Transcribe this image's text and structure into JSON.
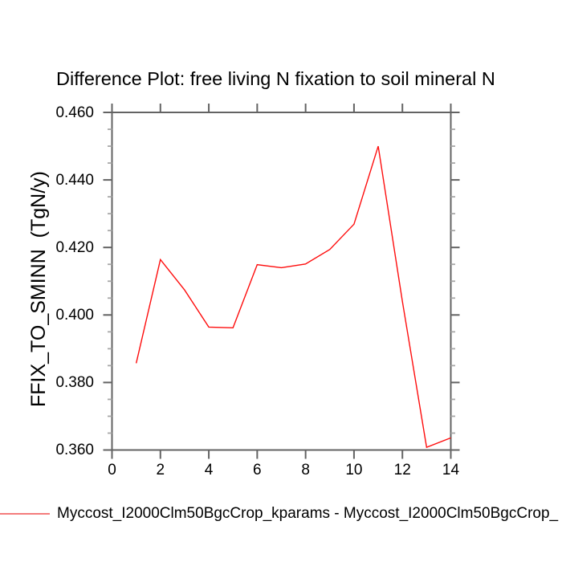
{
  "title": "Difference Plot: free living N fixation to soil mineral N",
  "y_axis_label": "FFIX_TO_SMINN  (TgN/y)",
  "legend": {
    "label": "Myccost_I2000Clm50BgcCrop_kparams - Myccost_I2000Clm50BgcCrop_",
    "swatch_color": "#f47c7c"
  },
  "colors": {
    "background": "#ffffff",
    "line": "#fe0d0d",
    "axis": "#636363",
    "minor_tick": "#a8a8a8",
    "text": "#000000"
  },
  "chart_data": {
    "type": "line",
    "title": "Difference Plot: free living N fixation to soil mineral N",
    "xlabel": "",
    "ylabel": "FFIX_TO_SMINN  (TgN/y)",
    "x": [
      1,
      2,
      3,
      4,
      5,
      6,
      7,
      8,
      9,
      10,
      11,
      12,
      13,
      14
    ],
    "series": [
      {
        "name": "Myccost_I2000Clm50BgcCrop_kparams - Myccost_I2000Clm50BgcCrop_",
        "color": "#fe0d0d",
        "values": [
          0.3857,
          0.4164,
          0.4074,
          0.3964,
          0.3962,
          0.4149,
          0.414,
          0.4151,
          0.4194,
          0.4269,
          0.45,
          0.404,
          0.3608,
          0.3636
        ]
      }
    ],
    "xlim": [
      0,
      14
    ],
    "ylim": [
      0.36,
      0.46
    ],
    "x_tick_values": [
      0,
      2,
      4,
      6,
      8,
      10,
      12,
      14
    ],
    "x_tick_labels": [
      "0",
      "2",
      "4",
      "6",
      "8",
      "10",
      "12",
      "14"
    ],
    "y_tick_values": [
      0.36,
      0.38,
      0.4,
      0.42,
      0.44,
      0.46
    ],
    "y_tick_labels": [
      "0.360",
      "0.380",
      "0.400",
      "0.420",
      "0.440",
      "0.460"
    ],
    "y_minor_step": 0.005,
    "grid": false,
    "ticks": "outward-all-sides",
    "legend_position": "bottom-left"
  }
}
